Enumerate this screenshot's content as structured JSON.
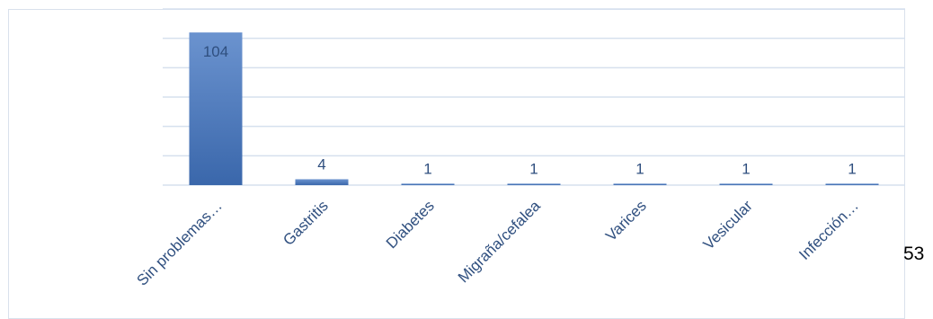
{
  "chart_data": {
    "type": "bar",
    "title": "",
    "xlabel": "",
    "ylabel": "",
    "categories": [
      "Sin problemas…",
      "Gastritis",
      "Diabetes",
      "Migraña/cefalea",
      "Varices",
      "Vesicular",
      "Infección…"
    ],
    "values": [
      104,
      4,
      1,
      1,
      1,
      1,
      1
    ],
    "data_labels": [
      "104",
      "4",
      "1",
      "1",
      "1",
      "1",
      "1"
    ],
    "ylim": [
      0,
      120
    ],
    "grid": true,
    "legend": "none",
    "colors": {
      "bar_light": "#6b93cf",
      "bar_dark": "#3a67ab",
      "grid": "#d6e0ee",
      "text": "#2f4f7f"
    }
  },
  "page": {
    "number_fragment": "53"
  }
}
